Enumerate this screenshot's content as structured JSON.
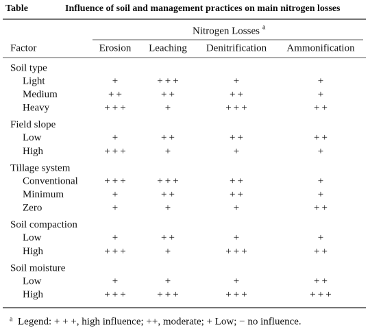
{
  "title": {
    "label": "Table",
    "text": "Influence of soil and management practices on main nitrogen losses"
  },
  "header": {
    "group": "Nitrogen Losses",
    "group_note": "a",
    "columns": [
      "Factor",
      "Erosion",
      "Leaching",
      "Denitrification",
      "Ammonification"
    ]
  },
  "groups": [
    {
      "name": "Soil type",
      "rows": [
        {
          "factor": "Light",
          "cells": [
            "+",
            "+++",
            "+",
            "+"
          ]
        },
        {
          "factor": "Medium",
          "cells": [
            "++",
            "++",
            "++",
            "+"
          ]
        },
        {
          "factor": "Heavy",
          "cells": [
            "+++",
            "+",
            "+++",
            "++"
          ]
        }
      ]
    },
    {
      "name": "Field slope",
      "rows": [
        {
          "factor": "Low",
          "cells": [
            "+",
            "++",
            "++",
            "++"
          ]
        },
        {
          "factor": "High",
          "cells": [
            "+++",
            "+",
            "+",
            "+"
          ]
        }
      ]
    },
    {
      "name": "Tillage system",
      "rows": [
        {
          "factor": "Conventional",
          "cells": [
            "+++",
            "+++",
            "++",
            "+"
          ]
        },
        {
          "factor": "Minimum",
          "cells": [
            "+",
            "++",
            "++",
            "+"
          ]
        },
        {
          "factor": "Zero",
          "cells": [
            "+",
            "+",
            "+",
            "++"
          ]
        }
      ]
    },
    {
      "name": "Soil compaction",
      "rows": [
        {
          "factor": "Low",
          "cells": [
            "+",
            "++",
            "+",
            "+"
          ]
        },
        {
          "factor": "High",
          "cells": [
            "+++",
            "+",
            "+++",
            "++"
          ]
        }
      ]
    },
    {
      "name": "Soil moisture",
      "rows": [
        {
          "factor": "Low",
          "cells": [
            "+",
            "+",
            "+",
            "++"
          ]
        },
        {
          "factor": "High",
          "cells": [
            "+++",
            "+++",
            "+++",
            "+++"
          ]
        }
      ]
    }
  ],
  "footnote": {
    "mark": "a",
    "text": "Legend: + + +, high influence; ++, moderate; + Low; − no influence."
  }
}
